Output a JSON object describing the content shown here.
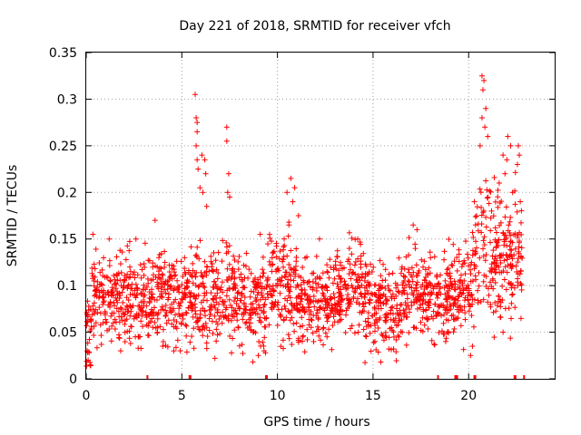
{
  "chart_data": {
    "type": "scatter",
    "title": "Day 221 of 2018, SRMTID for receiver vfch",
    "xlabel": "GPS time / hours",
    "ylabel": "SRMTID / TECUs",
    "xlim": [
      0,
      24.5
    ],
    "ylim": [
      0,
      0.35
    ],
    "x_ticks": [
      0,
      5,
      10,
      15,
      20
    ],
    "x_tick_labels": [
      "0",
      "5",
      "10",
      "15",
      "20"
    ],
    "y_ticks": [
      0,
      0.05,
      0.1,
      0.15,
      0.2,
      0.25,
      0.3,
      0.35
    ],
    "y_tick_labels": [
      "0",
      "0.05",
      "0.1",
      "0.15",
      "0.2",
      "0.25",
      "0.3",
      "0.35"
    ],
    "grid": true,
    "marker": "plus",
    "color": "#ff0000",
    "series": [
      {
        "name": "SRMTID",
        "segments": [
          {
            "x_range": [
              0.0,
              0.3
            ],
            "baseline": 0.055,
            "spread": 0.03
          },
          {
            "x_range": [
              0.3,
              2.0
            ],
            "baseline": 0.09,
            "spread": 0.025
          },
          {
            "x_range": [
              2.0,
              5.5
            ],
            "baseline": 0.085,
            "spread": 0.025
          },
          {
            "x_range": [
              5.5,
              7.5
            ],
            "baseline": 0.09,
            "spread": 0.03
          },
          {
            "x_range": [
              7.5,
              9.5
            ],
            "baseline": 0.085,
            "spread": 0.025
          },
          {
            "x_range": [
              9.5,
              11.0
            ],
            "baseline": 0.1,
            "spread": 0.03
          },
          {
            "x_range": [
              11.0,
              13.0
            ],
            "baseline": 0.08,
            "spread": 0.025
          },
          {
            "x_range": [
              13.0,
              14.5
            ],
            "baseline": 0.1,
            "spread": 0.025
          },
          {
            "x_range": [
              14.5,
              16.5
            ],
            "baseline": 0.075,
            "spread": 0.025
          },
          {
            "x_range": [
              16.5,
              19.0
            ],
            "baseline": 0.09,
            "spread": 0.025
          },
          {
            "x_range": [
              19.0,
              20.2
            ],
            "baseline": 0.1,
            "spread": 0.025
          },
          {
            "x_range": [
              20.2,
              22.8
            ],
            "baseline": 0.13,
            "spread": 0.04
          }
        ],
        "peaks": [
          {
            "x": 5.7,
            "y": 0.305
          },
          {
            "x": 5.75,
            "y": 0.28
          },
          {
            "x": 5.8,
            "y": 0.275
          },
          {
            "x": 5.8,
            "y": 0.265
          },
          {
            "x": 5.75,
            "y": 0.25
          },
          {
            "x": 5.8,
            "y": 0.235
          },
          {
            "x": 5.85,
            "y": 0.225
          },
          {
            "x": 6.05,
            "y": 0.24
          },
          {
            "x": 6.2,
            "y": 0.235
          },
          {
            "x": 6.25,
            "y": 0.22
          },
          {
            "x": 6.1,
            "y": 0.2
          },
          {
            "x": 6.3,
            "y": 0.185
          },
          {
            "x": 5.95,
            "y": 0.205
          },
          {
            "x": 7.35,
            "y": 0.27
          },
          {
            "x": 7.35,
            "y": 0.255
          },
          {
            "x": 7.4,
            "y": 0.2
          },
          {
            "x": 7.45,
            "y": 0.22
          },
          {
            "x": 7.5,
            "y": 0.195
          },
          {
            "x": 3.6,
            "y": 0.17
          },
          {
            "x": 10.7,
            "y": 0.215
          },
          {
            "x": 10.9,
            "y": 0.205
          },
          {
            "x": 10.5,
            "y": 0.2
          },
          {
            "x": 10.8,
            "y": 0.19
          },
          {
            "x": 11.1,
            "y": 0.175
          },
          {
            "x": 10.6,
            "y": 0.165
          },
          {
            "x": 20.7,
            "y": 0.325
          },
          {
            "x": 20.8,
            "y": 0.32
          },
          {
            "x": 20.75,
            "y": 0.31
          },
          {
            "x": 20.9,
            "y": 0.29
          },
          {
            "x": 20.7,
            "y": 0.28
          },
          {
            "x": 20.85,
            "y": 0.27
          },
          {
            "x": 21.0,
            "y": 0.26
          },
          {
            "x": 20.6,
            "y": 0.25
          },
          {
            "x": 22.05,
            "y": 0.26
          },
          {
            "x": 22.2,
            "y": 0.25
          },
          {
            "x": 21.8,
            "y": 0.24
          },
          {
            "x": 22.0,
            "y": 0.235
          },
          {
            "x": 22.6,
            "y": 0.25
          },
          {
            "x": 22.65,
            "y": 0.24
          },
          {
            "x": 22.55,
            "y": 0.23
          },
          {
            "x": 21.9,
            "y": 0.22
          },
          {
            "x": 21.6,
            "y": 0.21
          },
          {
            "x": 22.3,
            "y": 0.2
          },
          {
            "x": 20.3,
            "y": 0.19
          },
          {
            "x": 22.7,
            "y": 0.19
          },
          {
            "x": 21.2,
            "y": 0.18
          },
          {
            "x": 0.35,
            "y": 0.155
          },
          {
            "x": 1.2,
            "y": 0.15
          },
          {
            "x": 2.6,
            "y": 0.15
          },
          {
            "x": 9.1,
            "y": 0.155
          },
          {
            "x": 12.2,
            "y": 0.15
          },
          {
            "x": 14.2,
            "y": 0.15
          },
          {
            "x": 17.1,
            "y": 0.165
          },
          {
            "x": 17.3,
            "y": 0.16
          },
          {
            "x": 0.1,
            "y": 0.02
          },
          {
            "x": 0.2,
            "y": 0.015
          },
          {
            "x": 0.05,
            "y": 0.03
          },
          {
            "x": 20.1,
            "y": 0.025
          },
          {
            "x": 20.2,
            "y": 0.035
          },
          {
            "x": 9.3,
            "y": 0.03
          },
          {
            "x": 9.0,
            "y": 0.025
          },
          {
            "x": 1.8,
            "y": 0.03
          },
          {
            "x": 4.0,
            "y": 0.035
          },
          {
            "x": 15.1,
            "y": 0.04
          },
          {
            "x": 18.8,
            "y": 0.04
          },
          {
            "x": 21.8,
            "y": 0.05
          }
        ]
      }
    ],
    "rug_marks_x": [
      3.2,
      5.4,
      5.45,
      9.4,
      9.45,
      18.4,
      19.3,
      19.35,
      19.4,
      20.3,
      20.35,
      22.4,
      22.45,
      22.9
    ]
  }
}
